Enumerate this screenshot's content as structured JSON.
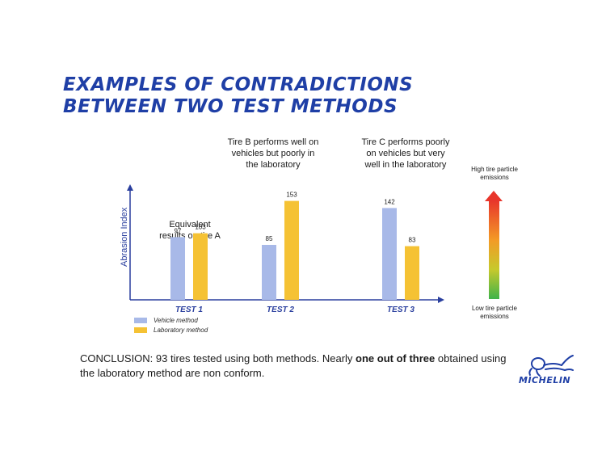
{
  "title": {
    "line1": "EXAMPLES OF CONTRADICTIONS",
    "line2": "BETWEEN TWO TEST METHODS"
  },
  "colors": {
    "title": "#1f3fa6",
    "vehicle": "#a8b9e8",
    "laboratory": "#f5c234",
    "axis": "#2a3f9e"
  },
  "annotations": {
    "test1_line1": "Equivalent",
    "test1_line2": "results on tire A",
    "test2_line1": "Tire B performs well on",
    "test2_line2": "vehicles but poorly in",
    "test2_line3": "the laboratory",
    "test3_line1": "Tire C performs poorly",
    "test3_line2": "on vehicles but very",
    "test3_line3": "well in the laboratory"
  },
  "chart_data": {
    "type": "bar",
    "ylabel": "Abrasion Index",
    "xlabel": "",
    "ylim": [
      0,
      160
    ],
    "categories": [
      "TEST 1",
      "TEST 2",
      "TEST 3"
    ],
    "series": [
      {
        "name": "Vehicle method",
        "values": [
          97,
          85,
          142
        ]
      },
      {
        "name": "Laboratory method",
        "values": [
          103,
          153,
          83
        ]
      }
    ]
  },
  "legend": {
    "vehicle": "Vehicle method",
    "laboratory": "Laboratory method"
  },
  "gauge": {
    "high_line1": "High tire particle",
    "high_line2": "emissions",
    "low_line1": "Low tire particle",
    "low_line2": "emissions"
  },
  "conclusion": {
    "part1": "CONCLUSION: 93 tires tested using both methods. Nearly ",
    "bold": "one out of three",
    "part2": " obtained using the laboratory method are non conform."
  },
  "logo": {
    "text": "MICHELIN"
  }
}
